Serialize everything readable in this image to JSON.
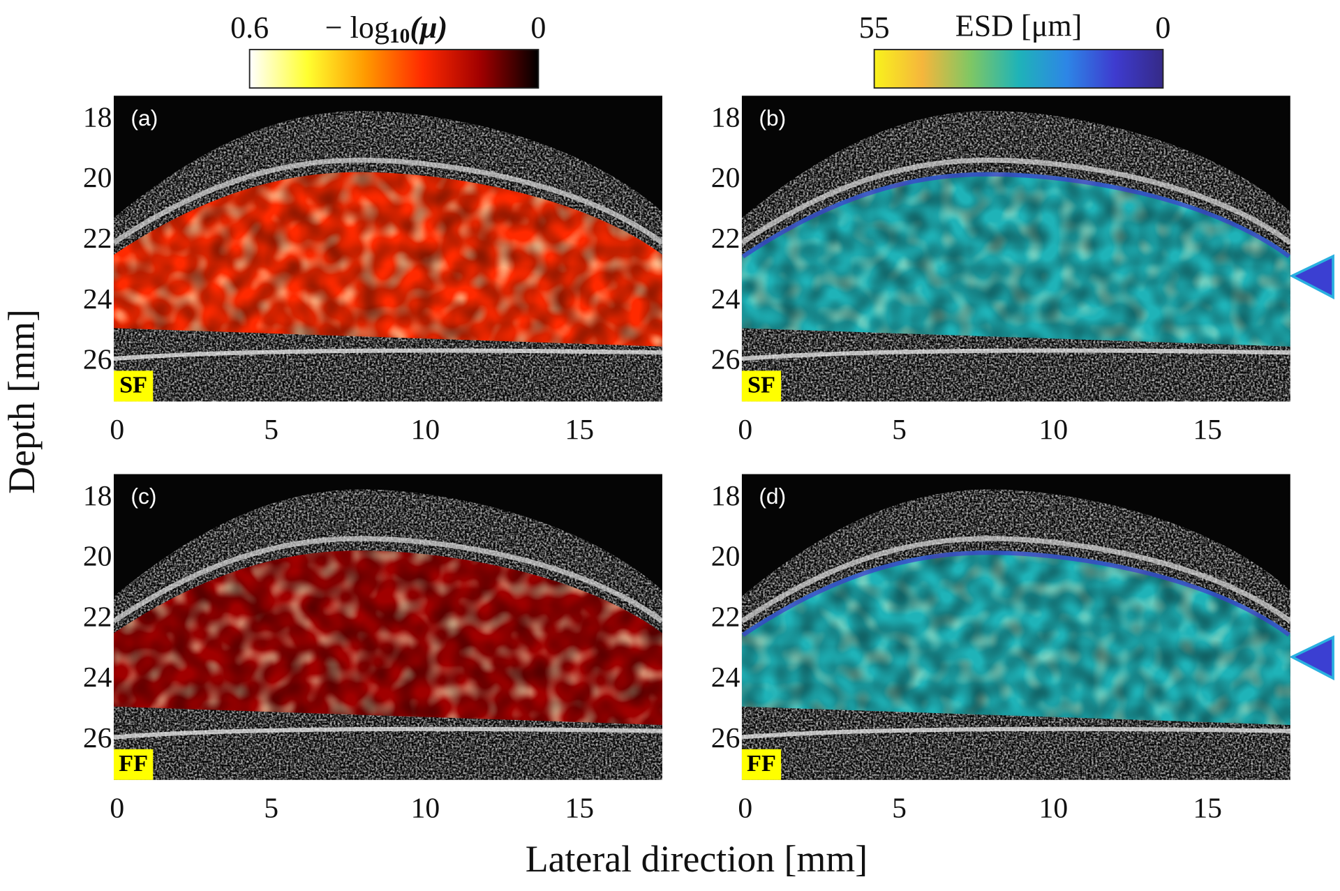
{
  "x_label": "Lateral direction [mm]",
  "y_label": "Depth [mm]",
  "colorbars": [
    {
      "title": {
        "main": "− log",
        "sub": "10",
        "tail": "(μ)"
      },
      "lim": [
        0.6,
        0
      ],
      "ticks": [
        0.6,
        0
      ],
      "colormap": "hot",
      "colors": [
        "#ffffff",
        "#ffff30",
        "#ff9a00",
        "#ff2a00",
        "#a00000",
        "#000000"
      ]
    },
    {
      "title": "ESD [μm]",
      "lim": [
        55,
        0
      ],
      "ticks": [
        55,
        0
      ],
      "colormap": "parula",
      "colors": [
        "#f9f21c",
        "#f5b63c",
        "#7fc764",
        "#1fb3b8",
        "#2d86e6",
        "#3e3bcf",
        "#352a87"
      ]
    }
  ],
  "chart_data": [
    {
      "type": "image",
      "panel_label": "(a)",
      "tag": "SF",
      "colormap": "hot",
      "xlim": [
        0,
        17.8
      ],
      "ylim": [
        27.3,
        17.2
      ],
      "xticks": [
        0,
        5,
        10,
        15
      ],
      "yticks": [
        18,
        20,
        22,
        24,
        26
      ]
    },
    {
      "type": "image",
      "panel_label": "(b)",
      "tag": "SF",
      "colormap": "parula",
      "xlim": [
        0,
        17.8
      ],
      "ylim": [
        27.3,
        17.2
      ],
      "xticks": [
        0,
        5,
        10,
        15
      ],
      "yticks": [
        18,
        20,
        22,
        24,
        26
      ]
    },
    {
      "type": "image",
      "panel_label": "(c)",
      "tag": "FF",
      "colormap": "hot",
      "xlim": [
        0,
        17.8
      ],
      "ylim": [
        27.3,
        17.2
      ],
      "xticks": [
        0,
        5,
        10,
        15
      ],
      "yticks": [
        18,
        20,
        22,
        24,
        26
      ]
    },
    {
      "type": "image",
      "panel_label": "(d)",
      "tag": "FF",
      "colormap": "parula",
      "xlim": [
        0,
        17.8
      ],
      "ylim": [
        27.3,
        17.2
      ],
      "xticks": [
        0,
        5,
        10,
        15
      ],
      "yticks": [
        18,
        20,
        22,
        24,
        26
      ]
    }
  ]
}
